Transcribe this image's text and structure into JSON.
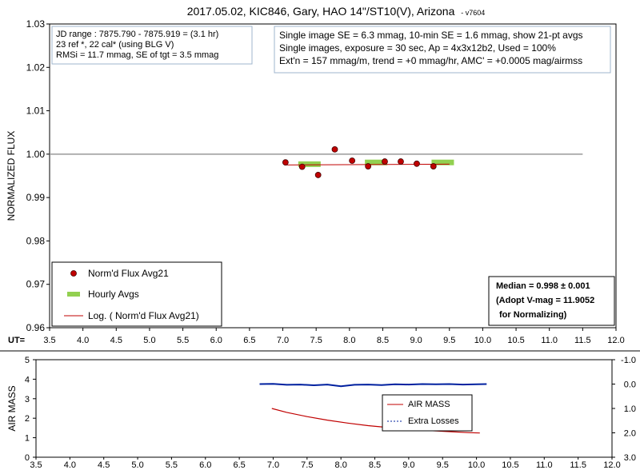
{
  "chart_data": [
    {
      "type": "scatter",
      "title": "2017.05.02, KIC846, Gary, HAO 14\"/ST10(V), Arizona",
      "version": "- v7604",
      "ylabel": "NORMALIZED FLUX",
      "xlabel": "UT=",
      "xlim": [
        3.5,
        12.0
      ],
      "ylim": [
        0.96,
        1.03
      ],
      "x_ticks": [
        "3.5",
        "4.0",
        "4.5",
        "5.0",
        "5.5",
        "6.0",
        "6.5",
        "7.0",
        "7.5",
        "8.0",
        "8.5",
        "9.0",
        "9.5",
        "10.0",
        "10.5",
        "11.0",
        "11.5",
        "12.0"
      ],
      "y_ticks": [
        "0.96",
        "0.97",
        "0.98",
        "0.99",
        "1.00",
        "1.01",
        "1.02",
        "1.03"
      ],
      "reference_line": {
        "y": 1.0,
        "x_range": [
          3.5,
          11.5
        ],
        "color": "#999999"
      },
      "series": [
        {
          "name": "Norm'd Flux Avg21",
          "color": "#c00000",
          "marker": "circle",
          "points": [
            [
              7.04,
              0.9981
            ],
            [
              7.29,
              0.9971
            ],
            [
              7.53,
              0.9952
            ],
            [
              7.78,
              1.0011
            ],
            [
              8.04,
              0.9985
            ],
            [
              8.28,
              0.9972
            ],
            [
              8.53,
              0.9983
            ],
            [
              8.77,
              0.9983
            ],
            [
              9.01,
              0.9978
            ],
            [
              9.26,
              0.9972
            ]
          ]
        },
        {
          "name": "Hourly Avgs",
          "color": "#92d050",
          "marker": "bar",
          "points": [
            [
              7.4,
              0.9976
            ],
            [
              8.4,
              0.998
            ],
            [
              9.4,
              0.998
            ]
          ]
        },
        {
          "name": "Log. ( Norm'd Flux Avg21)",
          "color": "#c00000",
          "marker": "line",
          "points": [
            [
              7.04,
              0.9975
            ],
            [
              9.5,
              0.9977
            ]
          ]
        }
      ],
      "info_left": [
        "JD range : 7875.790 - 7875.919 = (3.1 hr)",
        "23 ref *, 22 cal* (using BLG V)",
        "RMSi = 11.7 mmag, SE of tgt = 3.5 mmag"
      ],
      "info_right": [
        "Single image SE = 6.3 mmag, 10-min SE = 1.6 mmag, show 21-pt avgs",
        "Single images, exposure = 30 sec, Ap = 4x3x12b2, Used = 100%",
        "Ext'n = 157 mmag/m, trend = +0 mmag/hr, AMC' = +0.0005 mag/airmss"
      ],
      "median_box": [
        "Median = 0.998 ± 0.001",
        "(Adopt V-mag = 11.9052",
        "for Normalizing)"
      ],
      "legend_placement": "bottom-left"
    },
    {
      "type": "line",
      "ylabel": "AIR MASS",
      "xlim": [
        3.5,
        12.0
      ],
      "ylim": [
        0,
        5
      ],
      "y2lim": [
        -1.0,
        3.0
      ],
      "y2_inverted": true,
      "x_ticks": [
        "3.5",
        "4.0",
        "4.5",
        "5.0",
        "5.5",
        "6.0",
        "6.5",
        "7.0",
        "7.5",
        "8.0",
        "8.5",
        "9.0",
        "9.5",
        "10.0",
        "10.5",
        "11.0",
        "11.5",
        "12.0"
      ],
      "y_ticks": [
        "0",
        "1",
        "2",
        "3",
        "4",
        "5"
      ],
      "y2_ticks": [
        "-1.0",
        "0.0",
        "1.0",
        "2.0",
        "3.0"
      ],
      "series": [
        {
          "name": "AIR MASS",
          "color": "#c00000",
          "axis": "left",
          "points": [
            [
              6.98,
              2.5
            ],
            [
              7.2,
              2.3
            ],
            [
              7.5,
              2.08
            ],
            [
              7.8,
              1.9
            ],
            [
              8.1,
              1.75
            ],
            [
              8.4,
              1.62
            ],
            [
              8.7,
              1.52
            ],
            [
              9.0,
              1.44
            ],
            [
              9.3,
              1.37
            ],
            [
              9.6,
              1.31
            ],
            [
              9.9,
              1.26
            ],
            [
              10.05,
              1.24
            ]
          ]
        },
        {
          "name": "Extra Losses",
          "color": "#00209f",
          "axis": "right",
          "points": [
            [
              6.8,
              0.0
            ],
            [
              7.0,
              -0.01
            ],
            [
              7.2,
              0.03
            ],
            [
              7.4,
              0.02
            ],
            [
              7.6,
              0.05
            ],
            [
              7.8,
              0.02
            ],
            [
              8.0,
              0.09
            ],
            [
              8.2,
              0.03
            ],
            [
              8.4,
              0.02
            ],
            [
              8.6,
              0.04
            ],
            [
              8.8,
              0.01
            ],
            [
              9.0,
              0.02
            ],
            [
              9.2,
              0.0
            ],
            [
              9.4,
              0.01
            ],
            [
              9.6,
              0.0
            ],
            [
              9.8,
              0.02
            ],
            [
              10.0,
              0.01
            ],
            [
              10.15,
              0.0
            ]
          ]
        }
      ],
      "legend_placement": "center-right"
    }
  ]
}
